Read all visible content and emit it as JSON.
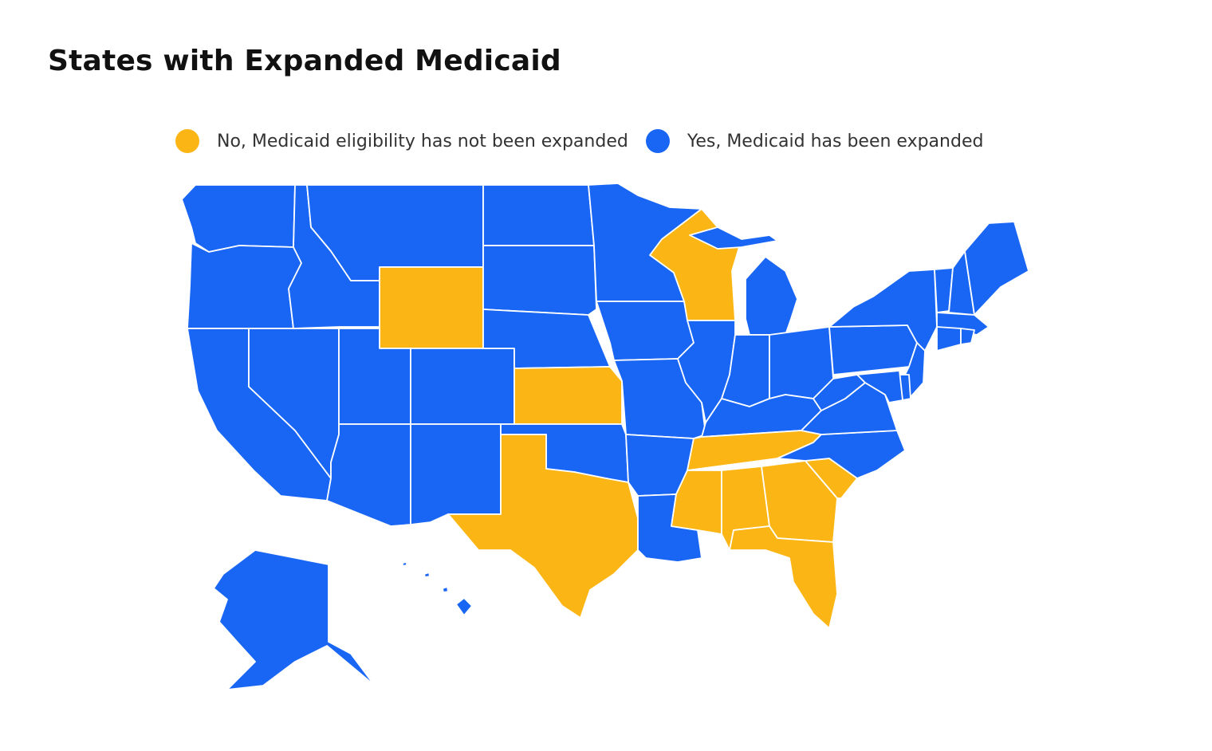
{
  "title": "States with Expanded Medicaid",
  "legend": [
    {
      "label": "No, Medicaid eligibility has not been expanded",
      "color": "#FBB615",
      "status": "no"
    },
    {
      "label": "Yes, Medicaid has been expanded",
      "color": "#1966F5",
      "status": "yes"
    }
  ],
  "colors": {
    "no": "#FBB615",
    "yes": "#1966F5",
    "border": "#FFFFFF"
  },
  "states": [
    {
      "id": "WA",
      "status": "yes"
    },
    {
      "id": "OR",
      "status": "yes"
    },
    {
      "id": "CA",
      "status": "yes"
    },
    {
      "id": "NV",
      "status": "yes"
    },
    {
      "id": "ID",
      "status": "yes"
    },
    {
      "id": "MT",
      "status": "yes"
    },
    {
      "id": "WY",
      "status": "no"
    },
    {
      "id": "UT",
      "status": "yes"
    },
    {
      "id": "AZ",
      "status": "yes"
    },
    {
      "id": "CO",
      "status": "yes"
    },
    {
      "id": "NM",
      "status": "yes"
    },
    {
      "id": "ND",
      "status": "yes"
    },
    {
      "id": "SD",
      "status": "yes"
    },
    {
      "id": "NE",
      "status": "yes"
    },
    {
      "id": "KS",
      "status": "no"
    },
    {
      "id": "OK",
      "status": "yes"
    },
    {
      "id": "TX",
      "status": "no"
    },
    {
      "id": "MN",
      "status": "yes"
    },
    {
      "id": "IA",
      "status": "yes"
    },
    {
      "id": "MO",
      "status": "yes"
    },
    {
      "id": "AR",
      "status": "yes"
    },
    {
      "id": "LA",
      "status": "yes"
    },
    {
      "id": "WI",
      "status": "no"
    },
    {
      "id": "IL",
      "status": "yes"
    },
    {
      "id": "MI",
      "status": "yes"
    },
    {
      "id": "IN",
      "status": "yes"
    },
    {
      "id": "OH",
      "status": "yes"
    },
    {
      "id": "KY",
      "status": "yes"
    },
    {
      "id": "TN",
      "status": "no"
    },
    {
      "id": "MS",
      "status": "no"
    },
    {
      "id": "AL",
      "status": "no"
    },
    {
      "id": "GA",
      "status": "no"
    },
    {
      "id": "FL",
      "status": "no"
    },
    {
      "id": "SC",
      "status": "no"
    },
    {
      "id": "NC",
      "status": "yes"
    },
    {
      "id": "VA",
      "status": "yes"
    },
    {
      "id": "WV",
      "status": "yes"
    },
    {
      "id": "PA",
      "status": "yes"
    },
    {
      "id": "NY",
      "status": "yes"
    },
    {
      "id": "VT",
      "status": "yes"
    },
    {
      "id": "NH",
      "status": "yes"
    },
    {
      "id": "ME",
      "status": "yes"
    },
    {
      "id": "MA",
      "status": "yes"
    },
    {
      "id": "CT",
      "status": "yes"
    },
    {
      "id": "RI",
      "status": "yes"
    },
    {
      "id": "NJ",
      "status": "yes"
    },
    {
      "id": "DE",
      "status": "yes"
    },
    {
      "id": "MD",
      "status": "yes"
    },
    {
      "id": "AK",
      "status": "yes"
    },
    {
      "id": "HI",
      "status": "yes"
    }
  ]
}
